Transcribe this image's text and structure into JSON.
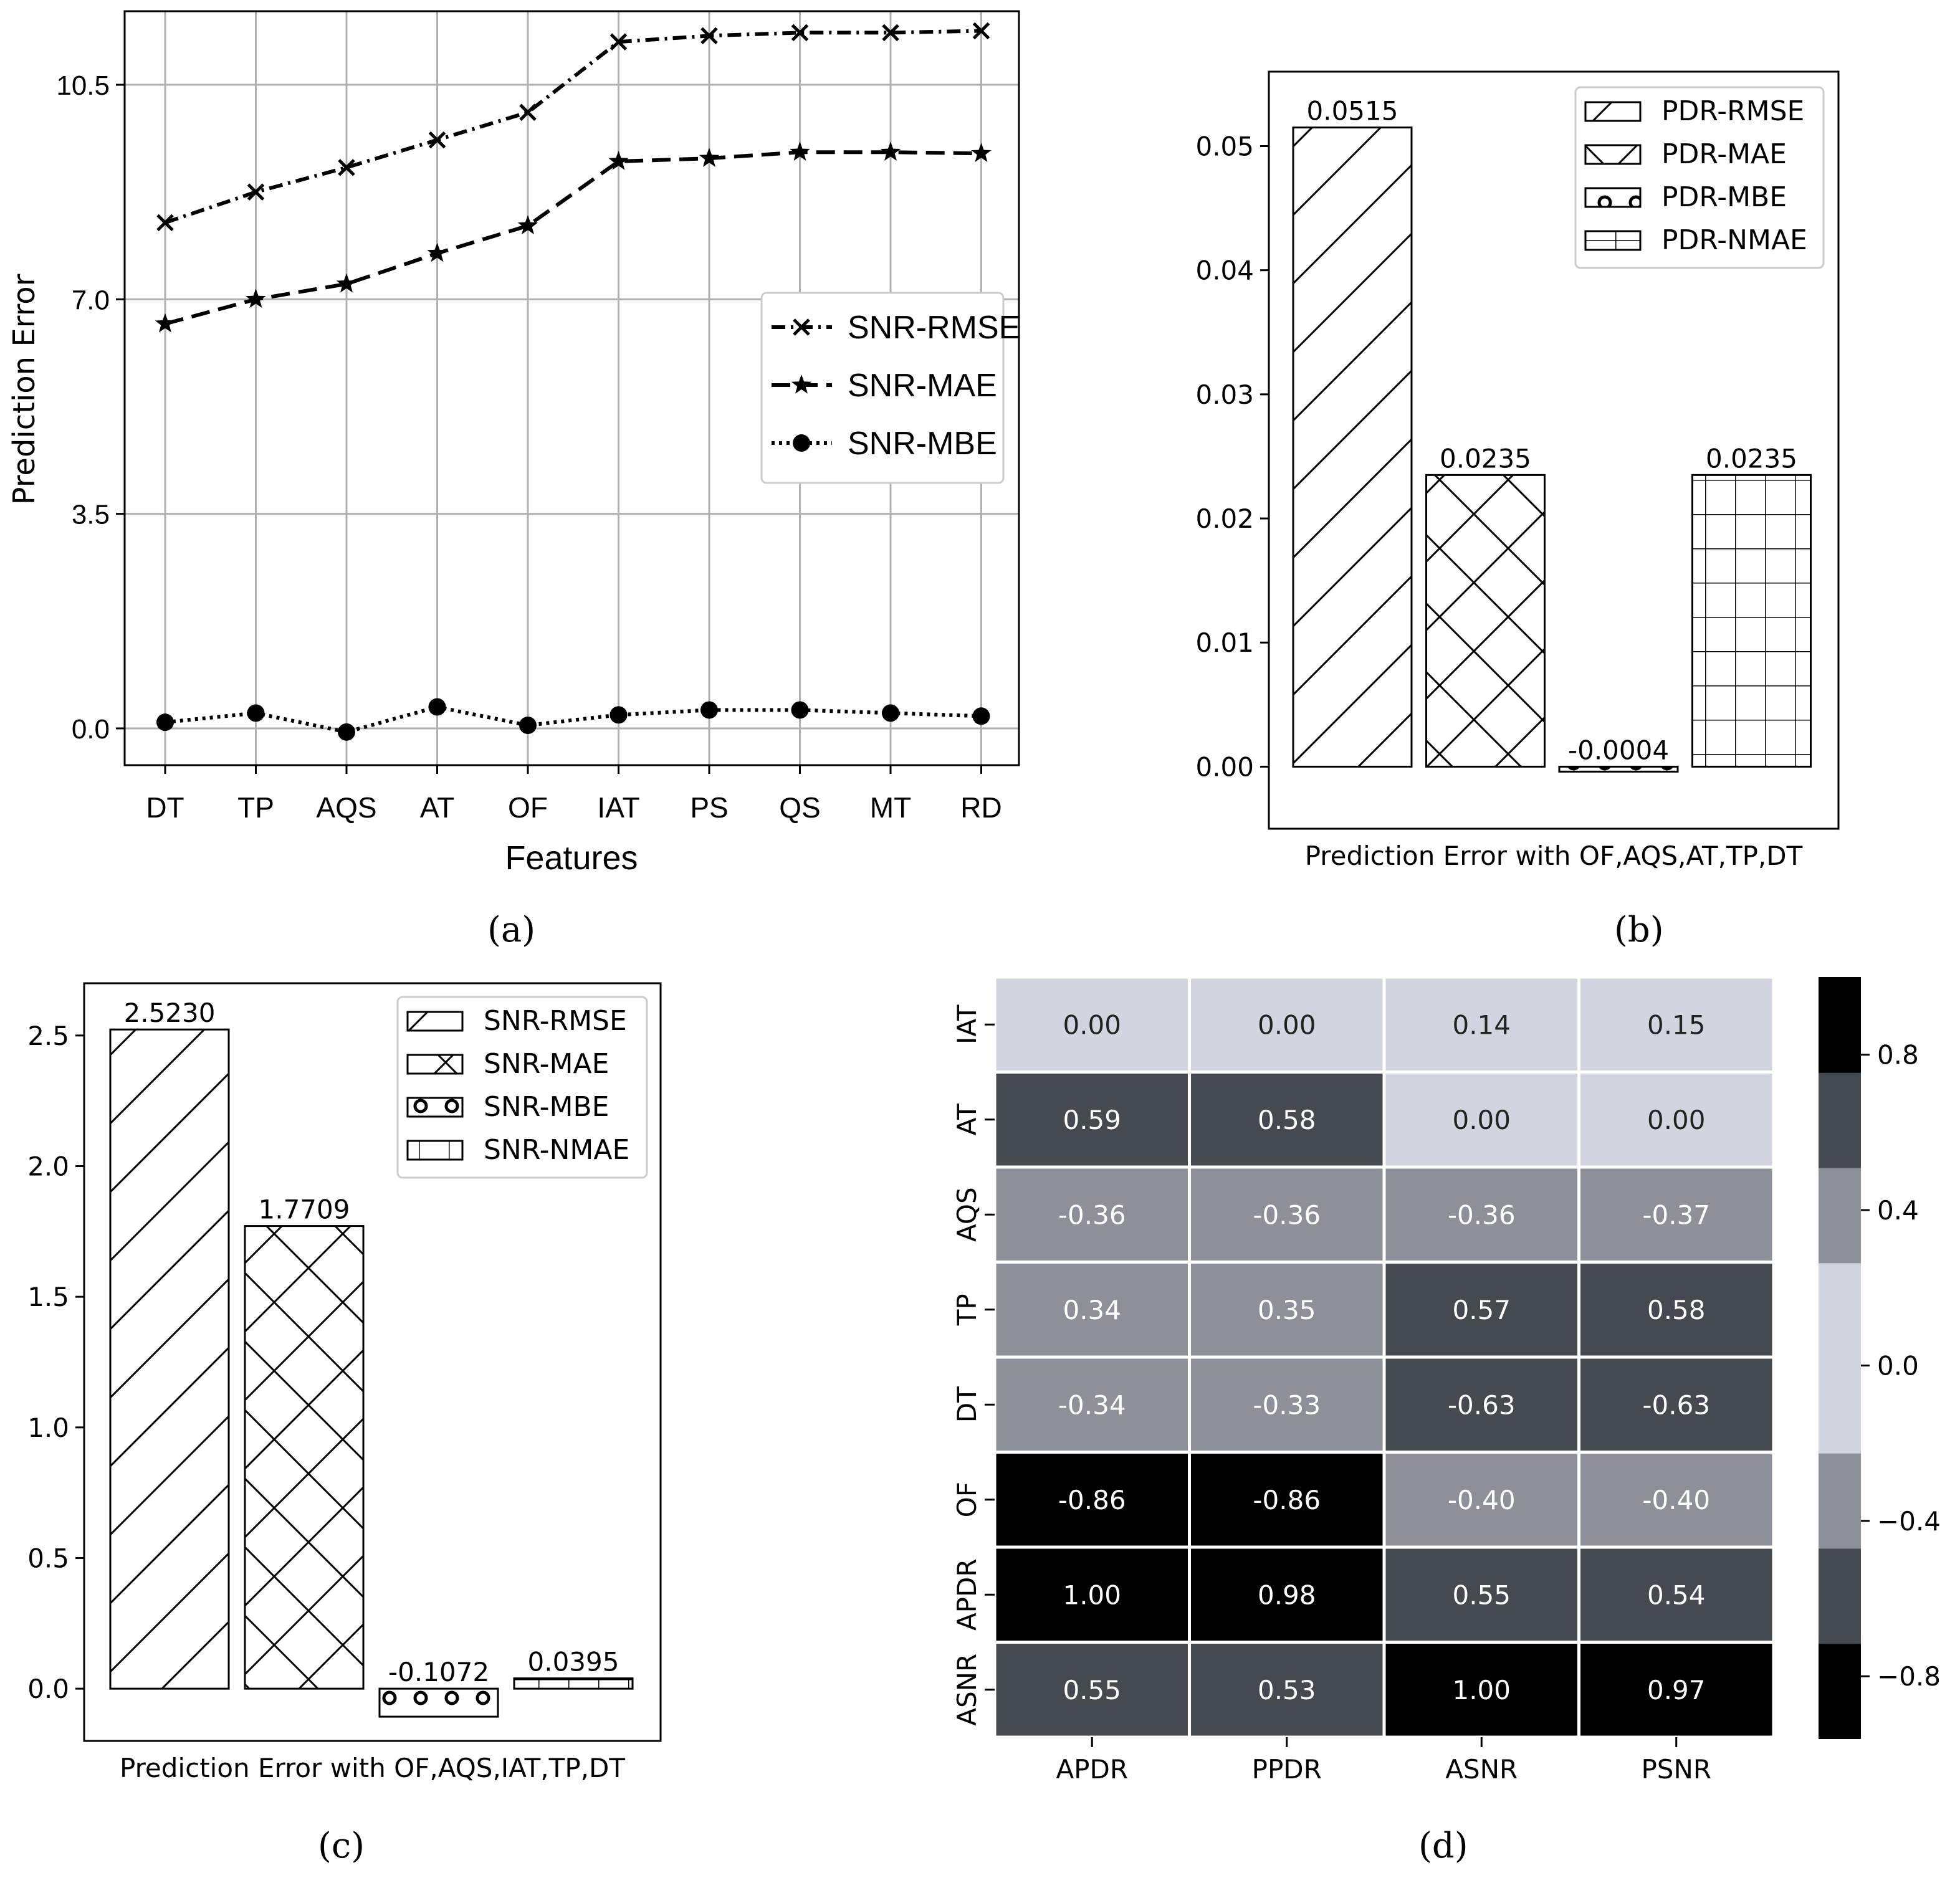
{
  "chart_data": [
    {
      "panel": "(a)",
      "type": "line",
      "xlabel": "Features",
      "ylabel": "Prediction Error",
      "categories": [
        "DT",
        "TP",
        "AQS",
        "AT",
        "OF",
        "IAT",
        "PS",
        "QS",
        "MT",
        "RD"
      ],
      "yticks": [
        "0.0",
        "3.5",
        "7.0",
        "10.5"
      ],
      "ylim": [
        -0.6,
        11.7
      ],
      "grid": true,
      "legend_position": "center-right",
      "series": [
        {
          "name": "SNR-RMSE",
          "marker": "x",
          "style": "dashdot",
          "values": [
            8.25,
            8.75,
            9.15,
            9.6,
            10.05,
            11.2,
            11.3,
            11.35,
            11.35,
            11.38
          ]
        },
        {
          "name": "SNR-MAE",
          "marker": "star",
          "style": "dashed",
          "values": [
            6.6,
            7.0,
            7.25,
            7.75,
            8.2,
            9.25,
            9.3,
            9.4,
            9.4,
            9.38
          ]
        },
        {
          "name": "SNR-MBE",
          "marker": "circle",
          "style": "dotted",
          "values": [
            0.1,
            0.25,
            -0.06,
            0.35,
            0.05,
            0.22,
            0.3,
            0.3,
            0.25,
            0.2
          ]
        }
      ]
    },
    {
      "panel": "(b)",
      "type": "bar",
      "xlabel": "Prediction Error with OF,AQS,AT,TP,DT",
      "yticks": [
        "0.00",
        "0.01",
        "0.02",
        "0.03",
        "0.04",
        "0.05"
      ],
      "ylim": [
        -0.005,
        0.056
      ],
      "legend_position": "top-right",
      "categories": [
        "PDR-RMSE",
        "PDR-MAE",
        "PDR-MBE",
        "PDR-NMAE"
      ],
      "values": [
        0.0515,
        0.0235,
        -0.0004,
        0.0235
      ],
      "value_labels": [
        "0.0515",
        "0.0235",
        "-0.0004",
        "0.0235"
      ],
      "hatches": [
        "diag",
        "cross",
        "circles",
        "grid"
      ]
    },
    {
      "panel": "(c)",
      "type": "bar",
      "xlabel": "Prediction Error with OF,AQS,IAT,TP,DT",
      "yticks": [
        "0.0",
        "0.5",
        "1.0",
        "1.5",
        "2.0",
        "2.5"
      ],
      "ylim": [
        -0.2,
        2.7
      ],
      "legend_position": "top-right",
      "categories": [
        "SNR-RMSE",
        "SNR-MAE",
        "SNR-MBE",
        "SNR-NMAE"
      ],
      "values": [
        2.523,
        1.7709,
        -0.1072,
        0.0395
      ],
      "value_labels": [
        "2.5230",
        "1.7709",
        "-0.1072",
        "0.0395"
      ],
      "hatches": [
        "diag",
        "cross",
        "circles",
        "grid"
      ]
    },
    {
      "panel": "(d)",
      "type": "heatmap",
      "rows": [
        "IAT",
        "AT",
        "AQS",
        "TP",
        "DT",
        "OF",
        "APDR",
        "ASNR"
      ],
      "cols": [
        "APDR",
        "PPDR",
        "ASNR",
        "PSNR"
      ],
      "values": [
        [
          0.0,
          0.0,
          0.14,
          0.15
        ],
        [
          0.59,
          0.58,
          0.0,
          0.0
        ],
        [
          -0.36,
          -0.36,
          -0.36,
          -0.37
        ],
        [
          0.34,
          0.35,
          0.57,
          0.58
        ],
        [
          -0.34,
          -0.33,
          -0.63,
          -0.63
        ],
        [
          -0.86,
          -0.86,
          -0.4,
          -0.4
        ],
        [
          1.0,
          0.98,
          0.55,
          0.54
        ],
        [
          0.55,
          0.53,
          1.0,
          0.97
        ]
      ],
      "cell_labels": [
        [
          "0.00",
          "0.00",
          "0.14",
          "0.15"
        ],
        [
          "0.59",
          "0.58",
          "0.00",
          "0.00"
        ],
        [
          "-0.36",
          "-0.36",
          "-0.36",
          "-0.37"
        ],
        [
          "0.34",
          "0.35",
          "0.57",
          "0.58"
        ],
        [
          "-0.34",
          "-0.33",
          "-0.63",
          "-0.63"
        ],
        [
          "-0.86",
          "-0.86",
          "-0.40",
          "-0.40"
        ],
        [
          "1.00",
          "0.98",
          "0.55",
          "0.54"
        ],
        [
          "0.55",
          "0.53",
          "1.00",
          "0.97"
        ]
      ],
      "colorbar_ticks": [
        "0.8",
        "0.4",
        "0.0",
        "−0.4",
        "−0.8"
      ],
      "colorbar_tick_values": [
        0.8,
        0.4,
        0.0,
        -0.4,
        -0.8
      ],
      "colorbar_range": [
        -0.96,
        1.0
      ],
      "colorbar_colors": [
        "#000000",
        "#454950",
        "#8d9099",
        "#d2d5e0",
        "#d2d5e0",
        "#8d9099",
        "#454950",
        "#000000"
      ]
    }
  ],
  "captions": {
    "a": "(a)",
    "b": "(b)",
    "c": "(c)",
    "d": "(d)"
  }
}
